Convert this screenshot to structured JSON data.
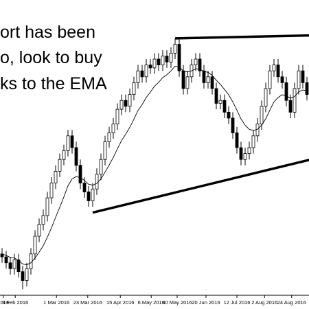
{
  "chart_data": {
    "type": "candlestick",
    "annotation_lines": [
      "ort has been",
      "o, look to buy",
      "ks to the EMA"
    ],
    "open": [
      14,
      13,
      11,
      9,
      12,
      8,
      5,
      9,
      14,
      20,
      24,
      27,
      33,
      38,
      42,
      46,
      49,
      54,
      50,
      44,
      38,
      35,
      32,
      36,
      41,
      46,
      52,
      55,
      58,
      63,
      66,
      64,
      68,
      72,
      76,
      74,
      78,
      77,
      80,
      78,
      81,
      79,
      82,
      85,
      76,
      70,
      74,
      78,
      80,
      76,
      72,
      74,
      70,
      65,
      66,
      62,
      60,
      55,
      50,
      46,
      48,
      50,
      54,
      58,
      64,
      70,
      76,
      78,
      74,
      72,
      66,
      62,
      70,
      76,
      72
    ],
    "high": [
      16,
      15,
      13,
      14,
      14,
      10,
      11,
      16,
      22,
      26,
      29,
      35,
      40,
      44,
      48,
      51,
      56,
      56,
      52,
      46,
      40,
      37,
      38,
      43,
      48,
      54,
      57,
      60,
      65,
      68,
      68,
      70,
      74,
      78,
      78,
      80,
      80,
      82,
      82,
      83,
      83,
      84,
      87,
      87,
      78,
      76,
      80,
      82,
      82,
      78,
      76,
      76,
      72,
      68,
      68,
      64,
      62,
      57,
      52,
      50,
      52,
      56,
      60,
      66,
      72,
      78,
      80,
      80,
      76,
      74,
      68,
      72,
      78,
      78,
      74
    ],
    "low": [
      11,
      9,
      7,
      7,
      6,
      2,
      3,
      7,
      12,
      18,
      22,
      25,
      31,
      36,
      40,
      44,
      47,
      48,
      42,
      36,
      33,
      30,
      30,
      34,
      39,
      44,
      50,
      53,
      56,
      61,
      62,
      62,
      66,
      70,
      72,
      72,
      75,
      75,
      76,
      76,
      77,
      77,
      80,
      74,
      68,
      68,
      72,
      76,
      74,
      70,
      70,
      68,
      63,
      63,
      60,
      58,
      53,
      48,
      44,
      44,
      46,
      48,
      52,
      56,
      62,
      68,
      74,
      72,
      70,
      64,
      60,
      60,
      68,
      70,
      66
    ],
    "close": [
      13,
      11,
      9,
      12,
      8,
      5,
      9,
      14,
      20,
      24,
      27,
      33,
      38,
      42,
      46,
      49,
      54,
      50,
      44,
      38,
      35,
      32,
      36,
      41,
      46,
      52,
      55,
      58,
      63,
      66,
      64,
      68,
      72,
      76,
      74,
      78,
      77,
      80,
      78,
      81,
      79,
      82,
      85,
      76,
      70,
      74,
      78,
      80,
      76,
      72,
      74,
      70,
      65,
      66,
      62,
      60,
      55,
      50,
      46,
      48,
      50,
      54,
      58,
      64,
      70,
      76,
      78,
      74,
      72,
      66,
      62,
      70,
      76,
      72,
      68
    ],
    "ema": [
      14,
      13.5,
      12.8,
      12.6,
      11.8,
      10.6,
      10.3,
      11,
      12.6,
      14.6,
      16.8,
      19.7,
      22.9,
      26.4,
      29.8,
      33.3,
      37.1,
      39.4,
      40.2,
      39.8,
      38.9,
      37.6,
      37.3,
      37.9,
      39.4,
      41.7,
      44.1,
      46.7,
      49.6,
      52.4,
      54.5,
      56.9,
      59.6,
      62.6,
      64.6,
      67,
      68.8,
      70.8,
      72.1,
      73.7,
      74.7,
      76,
      77.6,
      77.3,
      76,
      75.6,
      76,
      76.7,
      76.6,
      75.8,
      75.5,
      74.5,
      72.8,
      71.4,
      69.7,
      67.9,
      65.5,
      62.7,
      59.7,
      57.6,
      56.2,
      55.8,
      56.2,
      57.6,
      59.8,
      62.7,
      65.5,
      67,
      67.9,
      67.6,
      66.7,
      67.3,
      68.9,
      69.5,
      69.3
    ],
    "up_color": "#ffffff",
    "down_color": "#000000",
    "ema_color": "#000000",
    "trendlines": [
      {
        "x": [
          42,
          75
        ],
        "y": [
          87,
          88
        ]
      },
      {
        "x": [
          22,
          75
        ],
        "y": [
          28,
          46
        ]
      }
    ],
    "ylim": [
      0,
      100
    ],
    "xticks": [
      {
        "value": 0.3,
        "label": "2016"
      },
      {
        "value": 3.2,
        "label": "9 Feb 2016"
      },
      {
        "value": 13.2,
        "label": "1 Mar 2016"
      },
      {
        "value": 20.8,
        "label": "23 Mar 2016"
      },
      {
        "value": 28.7,
        "label": "15 Apr 2016"
      },
      {
        "value": 36.2,
        "label": "6 May 2016"
      },
      {
        "value": 42.5,
        "label": "30 May 2016"
      },
      {
        "value": 49.5,
        "label": "20 Jun 2016"
      },
      {
        "value": 57,
        "label": "12 Jul 2016"
      },
      {
        "value": 63.7,
        "label": "2 Aug 2016"
      },
      {
        "value": 70.3,
        "label": "24 Aug 2016"
      }
    ],
    "grid": false
  }
}
